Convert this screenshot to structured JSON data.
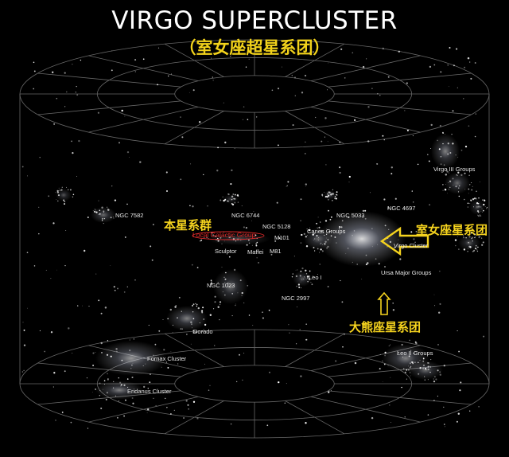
{
  "title": "VIRGO SUPERCLUSTER",
  "subtitle": "（室女座超星系团）",
  "labels": {
    "ngc7582": "NGC 7582",
    "ngc6744": "NGC 6744",
    "ngc5128": "NGC 5128",
    "m101": "M101",
    "m81": "M81",
    "maffei": "Maffei",
    "sculptor": "Sculptor",
    "local_group": "Local Galactic Group",
    "canes": "Canes Groups",
    "ngc5033": "NGC 5033",
    "ngc4697": "NGC 4697",
    "virgo3": "Virgo III Groups",
    "virgo_cluster": "Virgo Cluster",
    "ursa_major": "Ursa Major Groups",
    "leo1": "Leo I",
    "ngc2997": "NGC 2997",
    "ngc1023": "NGC 1023",
    "dorado": "Dorado",
    "leo2": "Leo II Groups",
    "fornax": "Fornax Cluster",
    "eridanus": "Eridanus Cluster"
  },
  "annotations": {
    "local_group_cn": "本星系群",
    "virgo_cn": "室女座星系团",
    "ursa_major_cn": "大熊座星系团"
  },
  "colors": {
    "background": "#000000",
    "title": "#ffffff",
    "annotation": "#f5d31e",
    "local_group_marker": "#e02a2a",
    "grid": "#8a8a8a"
  }
}
